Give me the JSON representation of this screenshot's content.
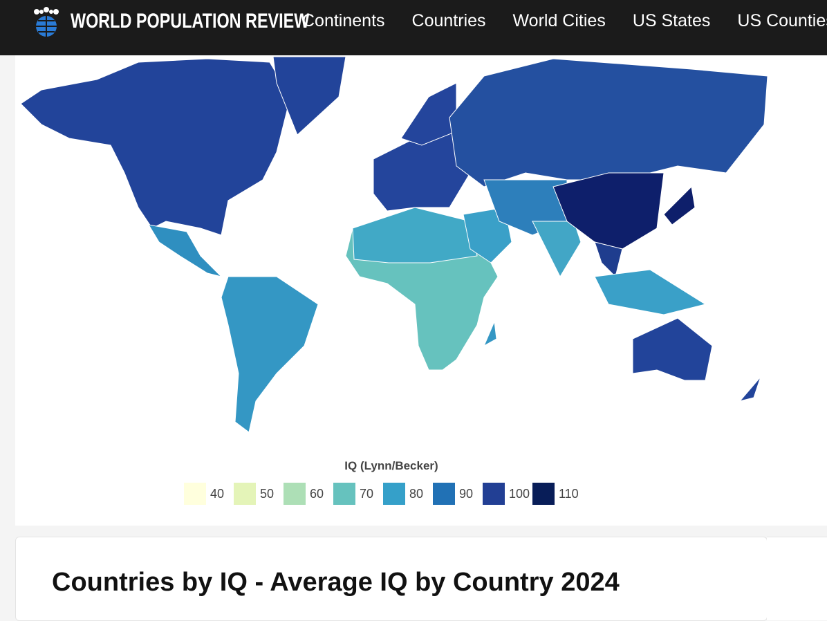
{
  "header": {
    "logo": "WORLD POPULATION REVIEW",
    "nav": [
      "Continents",
      "Countries",
      "World Cities",
      "US States",
      "US Counties"
    ]
  },
  "map": {
    "legend_title": "IQ (Lynn/Becker)",
    "legend": [
      {
        "value": 40,
        "color": "#ffffdd"
      },
      {
        "value": 50,
        "color": "#e4f4b8"
      },
      {
        "value": 60,
        "color": "#addfb6"
      },
      {
        "value": 70,
        "color": "#66c2be"
      },
      {
        "value": 80,
        "color": "#35a0c9"
      },
      {
        "value": 90,
        "color": "#2171b5"
      },
      {
        "value": 100,
        "color": "#223f94"
      },
      {
        "value": 110,
        "color": "#081d58"
      }
    ]
  },
  "article": {
    "title": "Countries by IQ - Average IQ by Country 2024"
  }
}
